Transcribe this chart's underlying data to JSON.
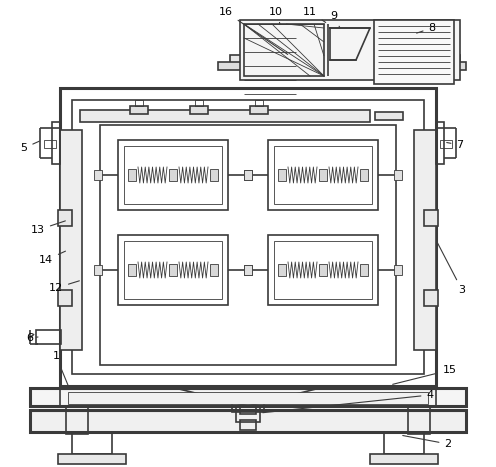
{
  "background_color": "#ffffff",
  "line_color": "#3a3a3a",
  "figsize": [
    4.96,
    4.67
  ],
  "dpi": 100,
  "lw_thick": 2.2,
  "lw_med": 1.2,
  "lw_thin": 0.6,
  "label_fs": 8.0
}
